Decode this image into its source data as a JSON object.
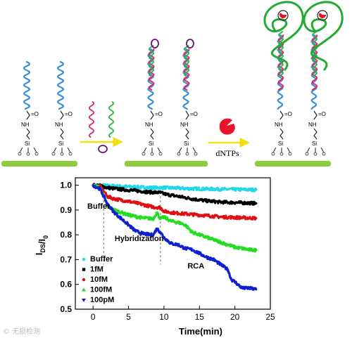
{
  "diagram": {
    "scheme_labels": {
      "arrow2_label": "dNTPs"
    },
    "chemistry_labels": {
      "amine": "NH",
      "carbonyl": "=O",
      "silicon": "Si"
    },
    "colors": {
      "substrate": "#8ccc3a",
      "probe": "#3a8fd8",
      "target_red": "#e0285a",
      "target_green": "#2bb24a",
      "polymerase": "#e8142c",
      "primer_circle": "#6a1a6e",
      "rca_product": "#22aa33",
      "arrow": "#f0e010"
    },
    "icons": [
      "polymerase-icon",
      "circular-template-icon",
      "process-arrow-icon"
    ]
  },
  "watermark": "© 无损检测",
  "chart_data": {
    "type": "scatter",
    "xlabel": "Time(min)",
    "ylabel": "I_DS/I_0",
    "xlim": [
      -2.5,
      25
    ],
    "ylim": [
      0.5,
      1.03
    ],
    "xticks": [
      0,
      5,
      10,
      15,
      20,
      25
    ],
    "yticks": [
      0.5,
      0.6,
      0.7,
      0.8,
      0.9,
      1.0
    ],
    "legend_position": "bottom-left",
    "annotations": [
      {
        "text": "Buffer",
        "x": 0.8,
        "y": 0.905
      },
      {
        "text": "Hybridization",
        "x": 6.5,
        "y": 0.775
      },
      {
        "text": "RCA",
        "x": 14.5,
        "y": 0.665
      }
    ],
    "event_markers_x": [
      1.5,
      9.5
    ],
    "series": [
      {
        "name": "Buffer",
        "color": "#22d8e8",
        "marker": "circle",
        "x": [
          0,
          1,
          2,
          4,
          6,
          8,
          10,
          12,
          14,
          16,
          18,
          20,
          22,
          23
        ],
        "y": [
          1.0,
          1.0,
          0.998,
          0.995,
          0.993,
          0.99,
          0.99,
          0.988,
          0.986,
          0.985,
          0.984,
          0.983,
          0.982,
          0.982
        ]
      },
      {
        "name": "1fM",
        "color": "#000000",
        "marker": "square",
        "x": [
          0,
          1,
          2,
          4,
          6,
          8,
          9.5,
          10,
          12,
          14,
          16,
          18,
          20,
          22,
          23
        ],
        "y": [
          1.0,
          0.998,
          0.99,
          0.983,
          0.978,
          0.972,
          0.97,
          0.965,
          0.955,
          0.945,
          0.937,
          0.932,
          0.93,
          0.928,
          0.927
        ]
      },
      {
        "name": "10fM",
        "color": "#e01010",
        "marker": "circle",
        "x": [
          0,
          1,
          1.5,
          2,
          3,
          5,
          7,
          8.5,
          9.5,
          10,
          11,
          12,
          14,
          16,
          18,
          20,
          22,
          23
        ],
        "y": [
          1.0,
          0.995,
          0.975,
          0.955,
          0.945,
          0.935,
          0.922,
          0.912,
          0.91,
          0.895,
          0.89,
          0.887,
          0.882,
          0.878,
          0.872,
          0.87,
          0.868,
          0.867
        ]
      },
      {
        "name": "100fM",
        "color": "#22dd22",
        "marker": "triangle-up",
        "x": [
          0,
          1,
          1.5,
          2,
          3,
          5,
          7,
          8.5,
          9,
          9.5,
          10,
          11,
          12,
          13,
          14,
          15,
          16,
          17,
          18,
          19,
          20,
          21,
          22,
          23
        ],
        "y": [
          1.0,
          0.99,
          0.96,
          0.915,
          0.9,
          0.88,
          0.868,
          0.865,
          0.89,
          0.865,
          0.872,
          0.855,
          0.85,
          0.84,
          0.81,
          0.8,
          0.79,
          0.78,
          0.77,
          0.76,
          0.75,
          0.745,
          0.74,
          0.738
        ]
      },
      {
        "name": "100pM",
        "color": "#1020d0",
        "marker": "triangle-down",
        "x": [
          0,
          1,
          1.5,
          2,
          3,
          4,
          5,
          6,
          7,
          8,
          8.5,
          9,
          9.5,
          10,
          11,
          12,
          13,
          14,
          15,
          16,
          17,
          18,
          19,
          19.5,
          20,
          21,
          22,
          23
        ],
        "y": [
          1.0,
          0.985,
          0.955,
          0.925,
          0.89,
          0.865,
          0.84,
          0.815,
          0.805,
          0.8,
          0.8,
          0.825,
          0.81,
          0.79,
          0.765,
          0.76,
          0.745,
          0.74,
          0.725,
          0.71,
          0.7,
          0.68,
          0.66,
          0.62,
          0.61,
          0.585,
          0.585,
          0.58
        ]
      }
    ]
  }
}
